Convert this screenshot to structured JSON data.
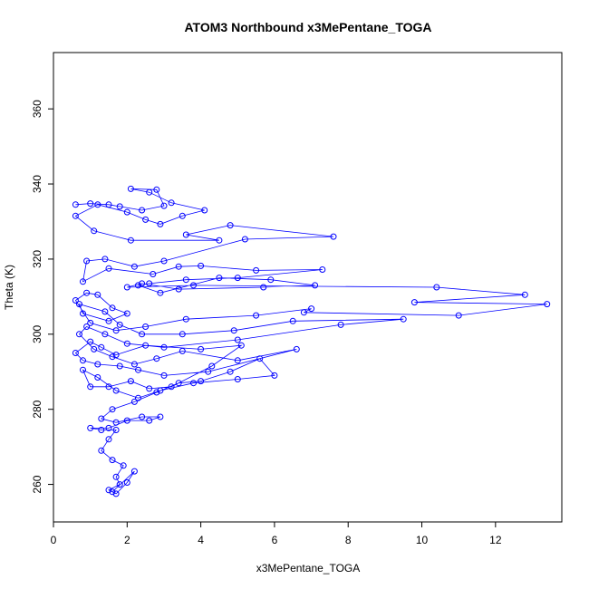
{
  "chart_data": {
    "type": "line",
    "title": "ATOM3 Northbound x3MePentane_TOGA",
    "xlabel": "x3MePentane_TOGA",
    "ylabel": "Theta (K)",
    "xlim": [
      0,
      13.8
    ],
    "ylim": [
      250,
      375
    ],
    "x_ticks": [
      0,
      2,
      4,
      6,
      8,
      10,
      12
    ],
    "y_ticks": [
      260,
      280,
      300,
      320,
      340,
      360
    ],
    "grid": false,
    "markers": "open-circle",
    "series_color": "#0000ff",
    "series": [
      {
        "points": [
          [
            0.6,
            334.5
          ],
          [
            1.0,
            334.8
          ],
          [
            1.5,
            334.5
          ],
          [
            1.8,
            334.0
          ],
          [
            2.4,
            333.0
          ],
          [
            3.0,
            334.2
          ],
          [
            2.8,
            338.5
          ],
          [
            2.1,
            338.7
          ],
          [
            2.6,
            337.8
          ],
          [
            3.2,
            335.0
          ],
          [
            4.1,
            333.0
          ],
          [
            3.5,
            331.5
          ],
          [
            2.9,
            329.3
          ],
          [
            2.5,
            330.5
          ],
          [
            2.0,
            332.5
          ],
          [
            1.2,
            334.5
          ],
          [
            0.6,
            331.5
          ],
          [
            1.1,
            327.5
          ],
          [
            2.1,
            325.0
          ],
          [
            4.5,
            325.0
          ],
          [
            3.6,
            326.5
          ],
          [
            4.8,
            329.0
          ],
          [
            7.6,
            326.0
          ],
          [
            5.2,
            325.3
          ],
          [
            3.0,
            319.5
          ],
          [
            2.2,
            318.0
          ],
          [
            1.4,
            320.0
          ],
          [
            0.9,
            319.5
          ],
          [
            0.8,
            314.0
          ],
          [
            1.5,
            317.5
          ],
          [
            2.7,
            316.0
          ],
          [
            3.4,
            318.0
          ],
          [
            4.0,
            318.2
          ],
          [
            5.5,
            317.0
          ],
          [
            7.3,
            317.2
          ],
          [
            5.0,
            315.0
          ],
          [
            3.6,
            314.5
          ],
          [
            2.6,
            313.5
          ],
          [
            2.3,
            313.0
          ],
          [
            2.9,
            311.0
          ],
          [
            4.5,
            315.0
          ],
          [
            5.9,
            314.5
          ],
          [
            7.1,
            313.0
          ],
          [
            5.7,
            312.5
          ],
          [
            3.4,
            312.0
          ],
          [
            2.4,
            313.5
          ],
          [
            2.0,
            312.5
          ],
          [
            3.8,
            313.0
          ],
          [
            10.4,
            312.5
          ],
          [
            12.8,
            310.5
          ],
          [
            9.8,
            308.5
          ],
          [
            13.4,
            308.0
          ],
          [
            11.0,
            305.0
          ],
          [
            6.8,
            305.8
          ],
          [
            7.0,
            306.8
          ],
          [
            5.5,
            305.0
          ],
          [
            3.6,
            304.0
          ],
          [
            2.5,
            302.0
          ],
          [
            1.7,
            301.0
          ],
          [
            1.0,
            303.0
          ],
          [
            0.6,
            309.0
          ],
          [
            0.9,
            311.0
          ],
          [
            1.2,
            310.5
          ],
          [
            1.6,
            307.0
          ],
          [
            2.0,
            305.5
          ],
          [
            1.5,
            303.5
          ],
          [
            0.8,
            305.5
          ],
          [
            0.7,
            308.0
          ],
          [
            1.4,
            306.0
          ],
          [
            1.8,
            302.5
          ],
          [
            2.4,
            300.0
          ],
          [
            3.5,
            300.0
          ],
          [
            4.9,
            301.0
          ],
          [
            6.5,
            303.5
          ],
          [
            9.5,
            304.0
          ],
          [
            7.8,
            302.5
          ],
          [
            5.0,
            298.5
          ],
          [
            3.0,
            296.5
          ],
          [
            2.0,
            297.5
          ],
          [
            1.4,
            300.0
          ],
          [
            0.9,
            302.0
          ],
          [
            0.7,
            300.0
          ],
          [
            1.1,
            296.0
          ],
          [
            1.6,
            294.0
          ],
          [
            2.2,
            292.0
          ],
          [
            2.8,
            293.5
          ],
          [
            3.5,
            295.5
          ],
          [
            5.0,
            293.0
          ],
          [
            6.6,
            296.0
          ],
          [
            4.2,
            290.0
          ],
          [
            3.0,
            289.0
          ],
          [
            2.3,
            290.5
          ],
          [
            1.8,
            291.5
          ],
          [
            1.2,
            292.0
          ],
          [
            0.8,
            293.0
          ],
          [
            0.6,
            295.0
          ],
          [
            1.0,
            298.0
          ],
          [
            1.3,
            296.5
          ],
          [
            1.7,
            294.5
          ],
          [
            2.5,
            297.0
          ],
          [
            4.0,
            296.0
          ],
          [
            5.1,
            297.0
          ],
          [
            4.3,
            291.5
          ],
          [
            3.2,
            286.0
          ],
          [
            2.6,
            285.5
          ],
          [
            2.1,
            287.5
          ],
          [
            1.5,
            286.0
          ],
          [
            1.0,
            286.0
          ],
          [
            0.8,
            290.5
          ],
          [
            1.2,
            288.5
          ],
          [
            1.7,
            285.0
          ],
          [
            2.3,
            283.0
          ],
          [
            2.9,
            285.0
          ],
          [
            3.8,
            287.0
          ],
          [
            5.0,
            288.0
          ],
          [
            6.0,
            289.0
          ],
          [
            5.6,
            293.5
          ],
          [
            4.8,
            290.0
          ],
          [
            4.0,
            287.5
          ],
          [
            3.4,
            287.0
          ],
          [
            2.8,
            284.5
          ],
          [
            2.2,
            282.0
          ],
          [
            1.6,
            280.0
          ],
          [
            1.3,
            277.5
          ],
          [
            1.7,
            276.5
          ],
          [
            2.4,
            278.0
          ],
          [
            2.9,
            278.0
          ],
          [
            2.6,
            277.0
          ],
          [
            2.0,
            277.0
          ],
          [
            1.5,
            275.0
          ],
          [
            1.0,
            275.0
          ],
          [
            1.3,
            274.5
          ],
          [
            1.7,
            274.5
          ],
          [
            1.5,
            272.0
          ],
          [
            1.3,
            269.0
          ],
          [
            1.6,
            266.5
          ],
          [
            1.9,
            265.0
          ],
          [
            1.7,
            262.0
          ],
          [
            1.8,
            260.0
          ],
          [
            1.5,
            258.5
          ],
          [
            1.7,
            257.5
          ],
          [
            2.0,
            260.5
          ],
          [
            2.2,
            263.5
          ],
          [
            1.6,
            258.0
          ]
        ]
      }
    ]
  }
}
